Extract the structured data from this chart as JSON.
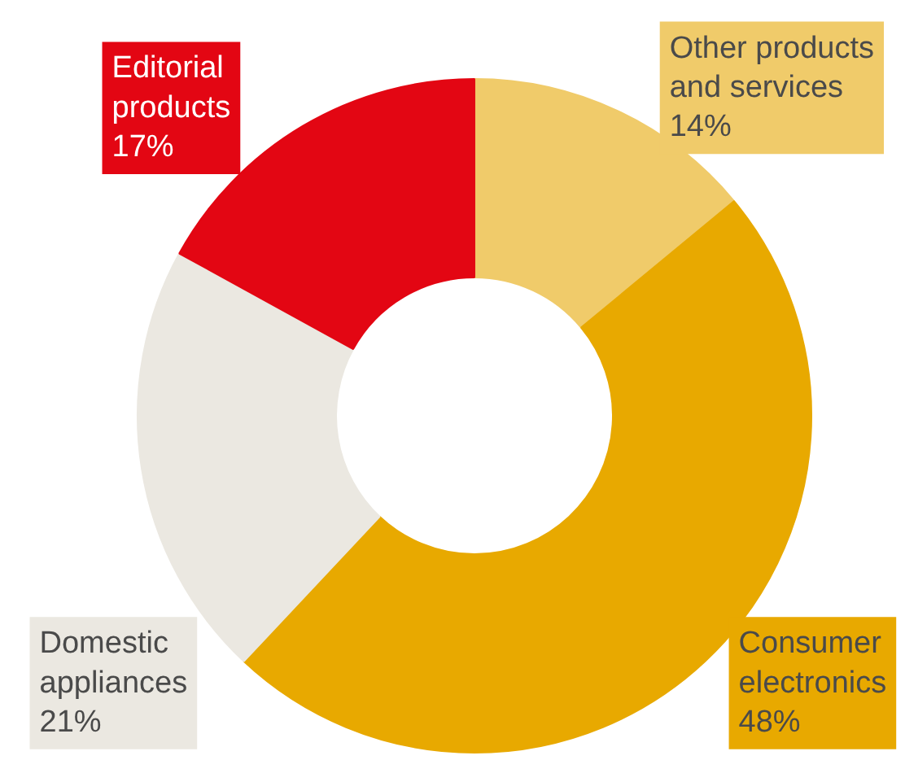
{
  "chart_data": {
    "type": "donut",
    "categories": [
      "Other products and services",
      "Consumer electronics",
      "Domestic appliances",
      "Editorial products"
    ],
    "values": [
      14,
      48,
      21,
      17
    ],
    "value_labels": [
      "14%",
      "48%",
      "21%",
      "17%"
    ],
    "colors": [
      "#f0cb6a",
      "#e8a900",
      "#ebe8e1",
      "#e30613"
    ]
  }
}
